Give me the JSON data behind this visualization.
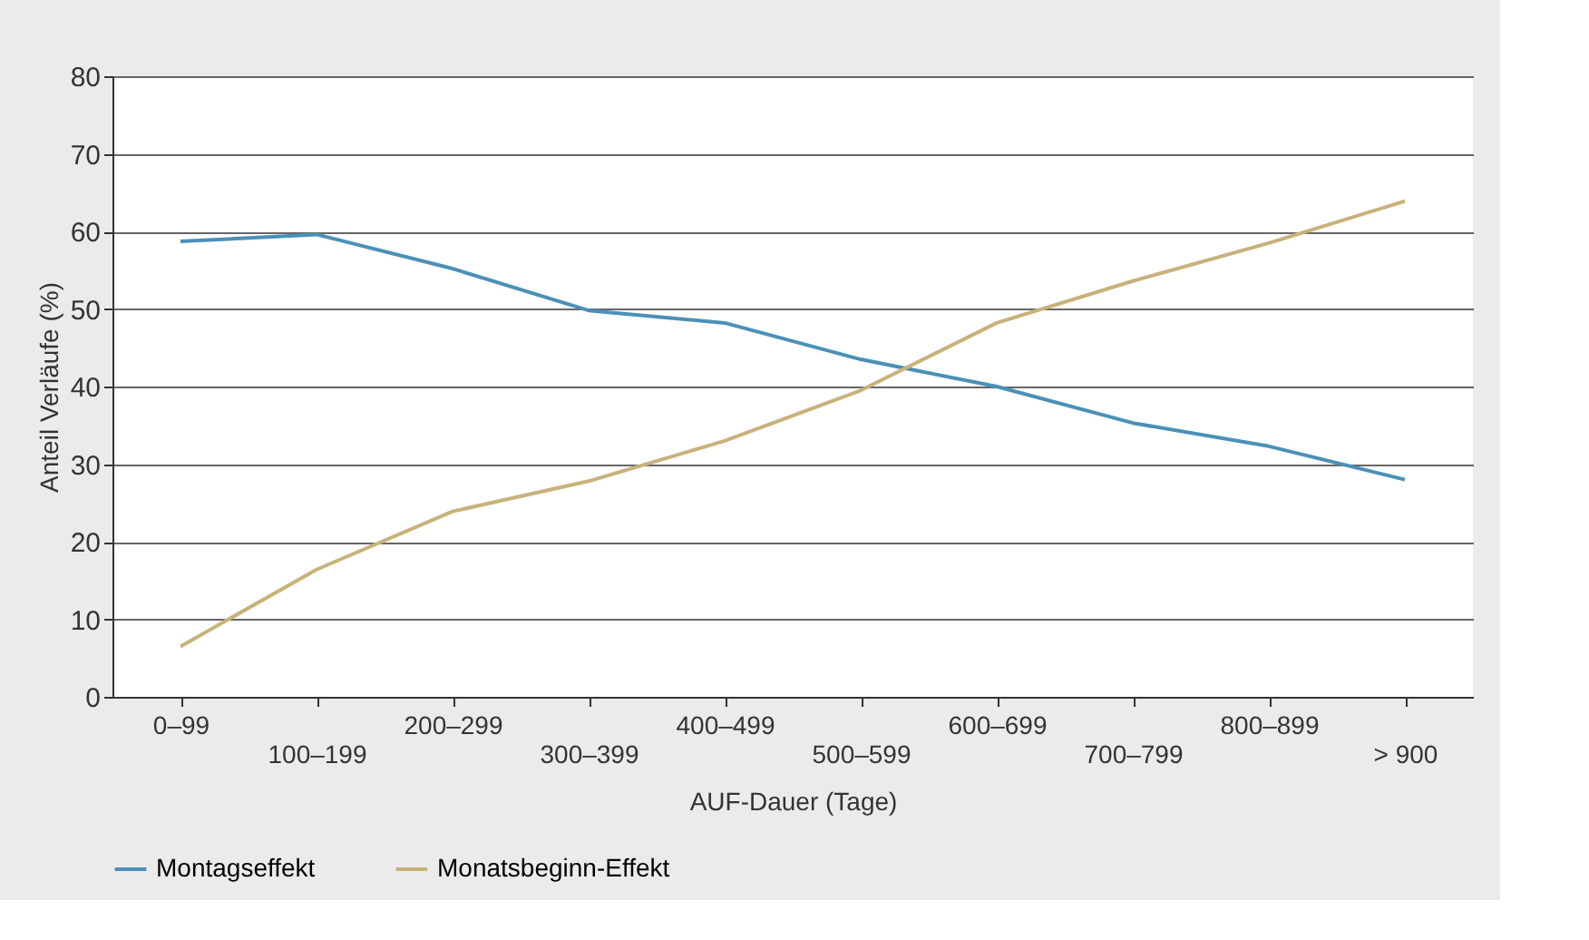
{
  "chart_data": {
    "type": "line",
    "xlabel": "AUF-Dauer (Tage)",
    "ylabel": "Anteil Verläufe (%)",
    "categories": [
      "0–99",
      "100–199",
      "200–299",
      "300–399",
      "400–499",
      "500–599",
      "600–699",
      "700–799",
      "800–899",
      "> 900"
    ],
    "series": [
      {
        "name": "Montagseffekt",
        "color": "#4a90b8",
        "values": [
          58.7,
          59.6,
          55.2,
          49.8,
          48.2,
          43.5,
          40,
          35.3,
          32.3,
          28
        ]
      },
      {
        "name": "Monatsbeginn-Effekt",
        "color": "#c8b27a",
        "values": [
          6.5,
          16.4,
          23.9,
          27.8,
          33,
          39.5,
          48.2,
          53.6,
          58.5,
          63.9
        ]
      }
    ],
    "ylim": [
      0,
      80
    ],
    "yticks": [
      0,
      10,
      20,
      30,
      40,
      50,
      60,
      70,
      80
    ],
    "grid": "y",
    "legend": "bottom left",
    "line_style": "solid",
    "marker": "none"
  }
}
